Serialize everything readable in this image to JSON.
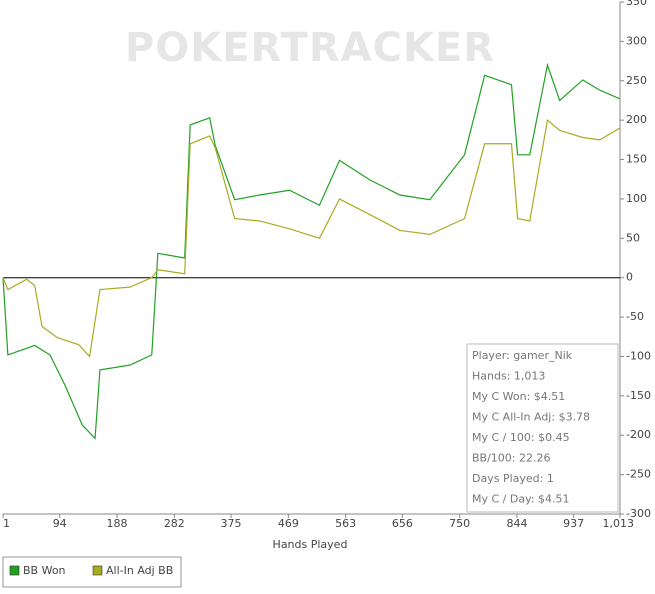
{
  "chart_data": {
    "type": "line",
    "watermark": "POKERTRACKER",
    "xlabel": "Hands Played",
    "xlim": [
      1,
      1013
    ],
    "ylim": [
      -300,
      350
    ],
    "xticks": [
      1,
      94,
      188,
      282,
      375,
      469,
      563,
      656,
      750,
      844,
      937,
      {
        "value": 1013,
        "label": "1,013"
      }
    ],
    "yticks": [
      350,
      300,
      250,
      200,
      150,
      100,
      50,
      0,
      -50,
      -100,
      -150,
      -200,
      -250,
      -300
    ],
    "series": [
      {
        "name": "BB Won",
        "color": "#22a022",
        "x": [
          1,
          9,
          53,
          78,
          103,
          131,
          152,
          160,
          209,
          245,
          255,
          299,
          308,
          340,
          349,
          381,
          422,
          471,
          520,
          553,
          603,
          652,
          701,
          758,
          791,
          835,
          845,
          865,
          894,
          914,
          952,
          980,
          1013
        ],
        "values": [
          0,
          -98,
          -86,
          -98,
          -137,
          -187,
          -204,
          -117,
          -111,
          -98,
          31,
          25,
          194,
          203,
          168,
          99,
          105,
          111,
          92,
          149,
          124,
          105,
          99,
          156,
          257,
          245,
          156,
          156,
          270,
          225,
          251,
          238,
          227
        ]
      },
      {
        "name": "All-In Adj BB",
        "color": "#aaaa22",
        "x": [
          1,
          9,
          40,
          53,
          65,
          90,
          125,
          143,
          160,
          209,
          245,
          255,
          299,
          308,
          340,
          349,
          381,
          422,
          471,
          520,
          553,
          603,
          652,
          701,
          758,
          791,
          835,
          845,
          865,
          894,
          914,
          952,
          980,
          1013
        ],
        "values": [
          0,
          -15,
          -2,
          -10,
          -62,
          -76,
          -85,
          -100,
          -15,
          -12,
          0,
          10,
          5,
          170,
          180,
          165,
          75,
          72,
          62,
          50,
          100,
          80,
          60,
          55,
          75,
          170,
          170,
          75,
          72,
          200,
          187,
          178,
          175,
          190
        ]
      }
    ],
    "info_box": [
      "Player: gamer_Nik",
      "Hands: 1,013",
      "My C Won: $4.51",
      "My C All-In Adj: $3.78",
      "My C / 100: $0.45",
      "BB/100: 22.26",
      "Days Played: 1",
      "My C / Day: $4.51"
    ]
  }
}
